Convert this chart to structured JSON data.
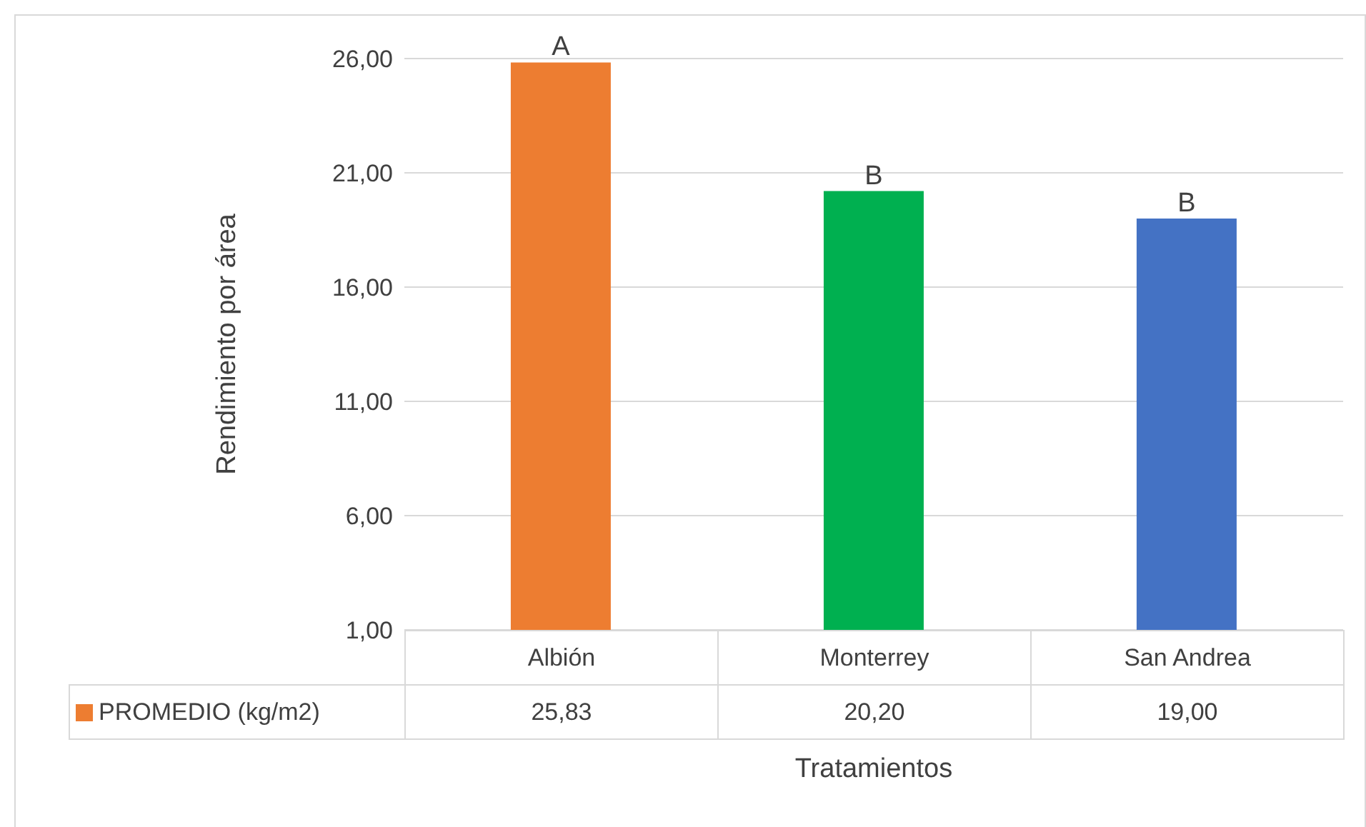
{
  "chart_data": {
    "type": "bar",
    "xlabel": "Tratamientos",
    "ylabel": "Rendimiento por área",
    "categories": [
      "Albión",
      "Monterrey",
      "San Andrea"
    ],
    "series": [
      {
        "name": "PROMEDIO (kg/m2)",
        "color": "#ed7d31",
        "colors": [
          "#ed7d31",
          "#00b050",
          "#4472c4"
        ],
        "values": [
          25.83,
          20.2,
          19.0
        ],
        "value_labels": [
          "25,83",
          "20,20",
          "19,00"
        ]
      }
    ],
    "ylim": [
      1,
      26
    ],
    "yticks": [
      {
        "value": 1,
        "label": "1,00"
      },
      {
        "value": 6,
        "label": "6,00"
      },
      {
        "value": 11,
        "label": "11,00"
      },
      {
        "value": 16,
        "label": "16,00"
      },
      {
        "value": 21,
        "label": "21,00"
      },
      {
        "value": 26,
        "label": "26,00"
      }
    ],
    "grid": "y",
    "legend": "bottom",
    "annotations": [
      {
        "text": "A",
        "x": "Albión",
        "y": 25.83
      },
      {
        "text": "B",
        "x": "Monterrey",
        "y": 20.2
      },
      {
        "text": "B",
        "x": "San Andrea",
        "y": 19.0
      }
    ]
  }
}
